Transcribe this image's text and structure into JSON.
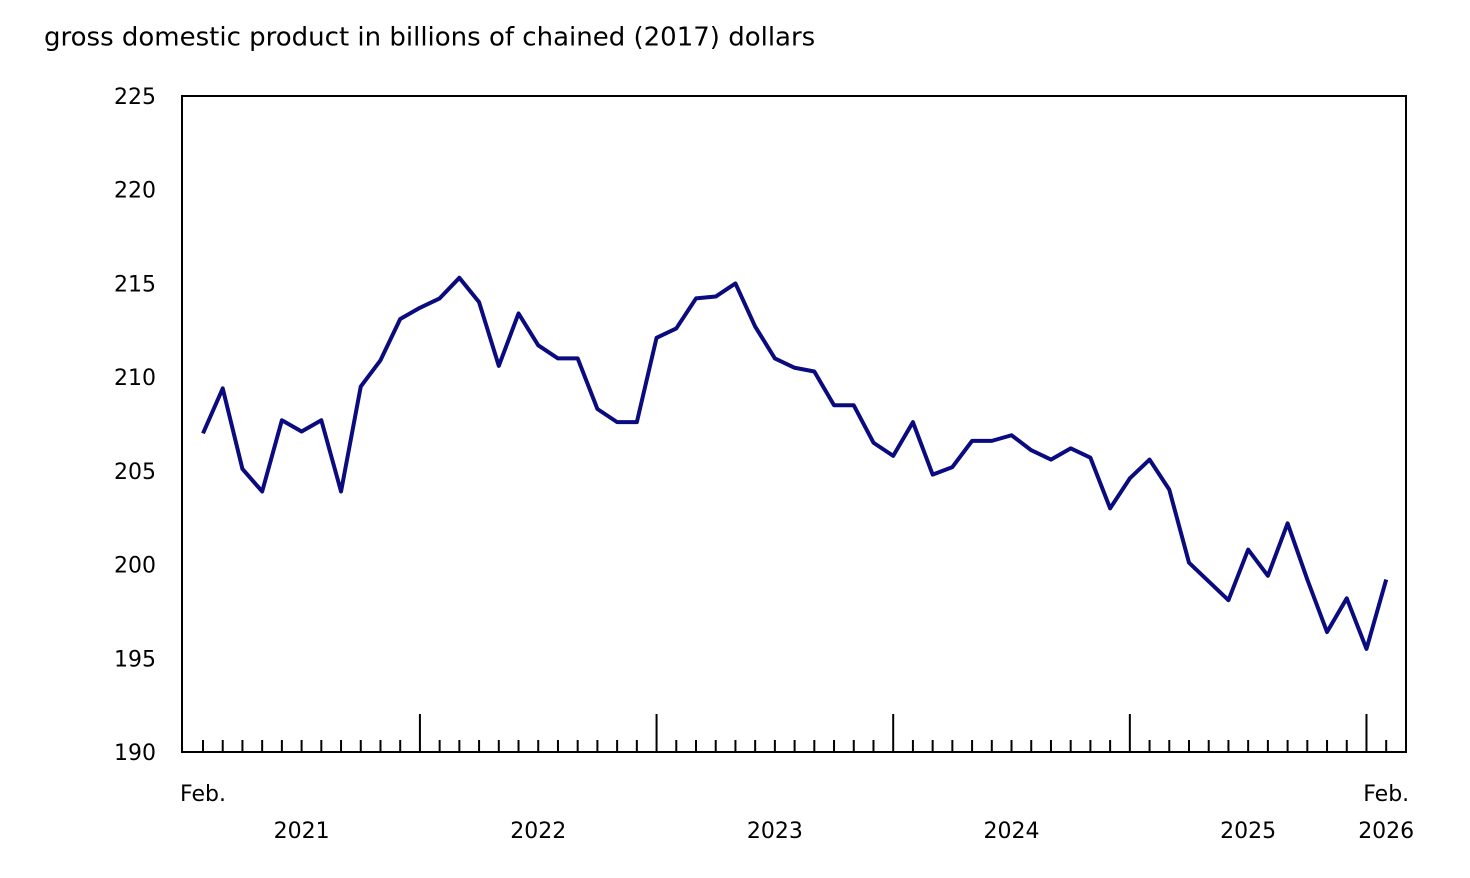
{
  "chart_data": {
    "type": "line",
    "title": "gross domestic product in billions of chained (2017) dollars",
    "categories": [
      "Feb.",
      null,
      null,
      null,
      null,
      null,
      null,
      null,
      null,
      null,
      null,
      null,
      null,
      null,
      null,
      null,
      null,
      null,
      null,
      null,
      null,
      null,
      null,
      null,
      null,
      null,
      null,
      null,
      null,
      null,
      null,
      null,
      null,
      null,
      null,
      null,
      null,
      null,
      null,
      null,
      null,
      null,
      null,
      null,
      null,
      null,
      null,
      null,
      null,
      null,
      null,
      null,
      null,
      null,
      null,
      null,
      null,
      null,
      null,
      null,
      "Feb."
    ],
    "years": [
      "2021",
      "2022",
      "2023",
      "2024",
      "2025",
      "2026"
    ],
    "series": [
      {
        "name": "gross domestic product",
        "color": "#0b0b80",
        "values": [
          207.0,
          209.4,
          205.1,
          203.9,
          207.7,
          207.1,
          207.7,
          203.9,
          209.5,
          210.9,
          213.1,
          213.7,
          214.2,
          215.3,
          214.0,
          210.6,
          213.4,
          211.7,
          211.0,
          211.0,
          208.3,
          207.6,
          207.6,
          212.1,
          212.6,
          214.2,
          214.3,
          215.0,
          212.7,
          211.0,
          210.5,
          210.3,
          208.5,
          208.5,
          206.5,
          205.8,
          207.6,
          204.8,
          205.2,
          206.6,
          206.6,
          206.9,
          206.1,
          205.6,
          206.2,
          205.7,
          203.0,
          204.6,
          205.6,
          204.0,
          200.1,
          199.1,
          198.1,
          200.8,
          199.4,
          202.2,
          199.2,
          196.4,
          198.2,
          195.5,
          199.2
        ]
      }
    ],
    "ylim": [
      190,
      225
    ],
    "yticks": [
      190,
      195,
      200,
      205,
      210,
      215,
      220,
      225
    ],
    "grid": false
  }
}
